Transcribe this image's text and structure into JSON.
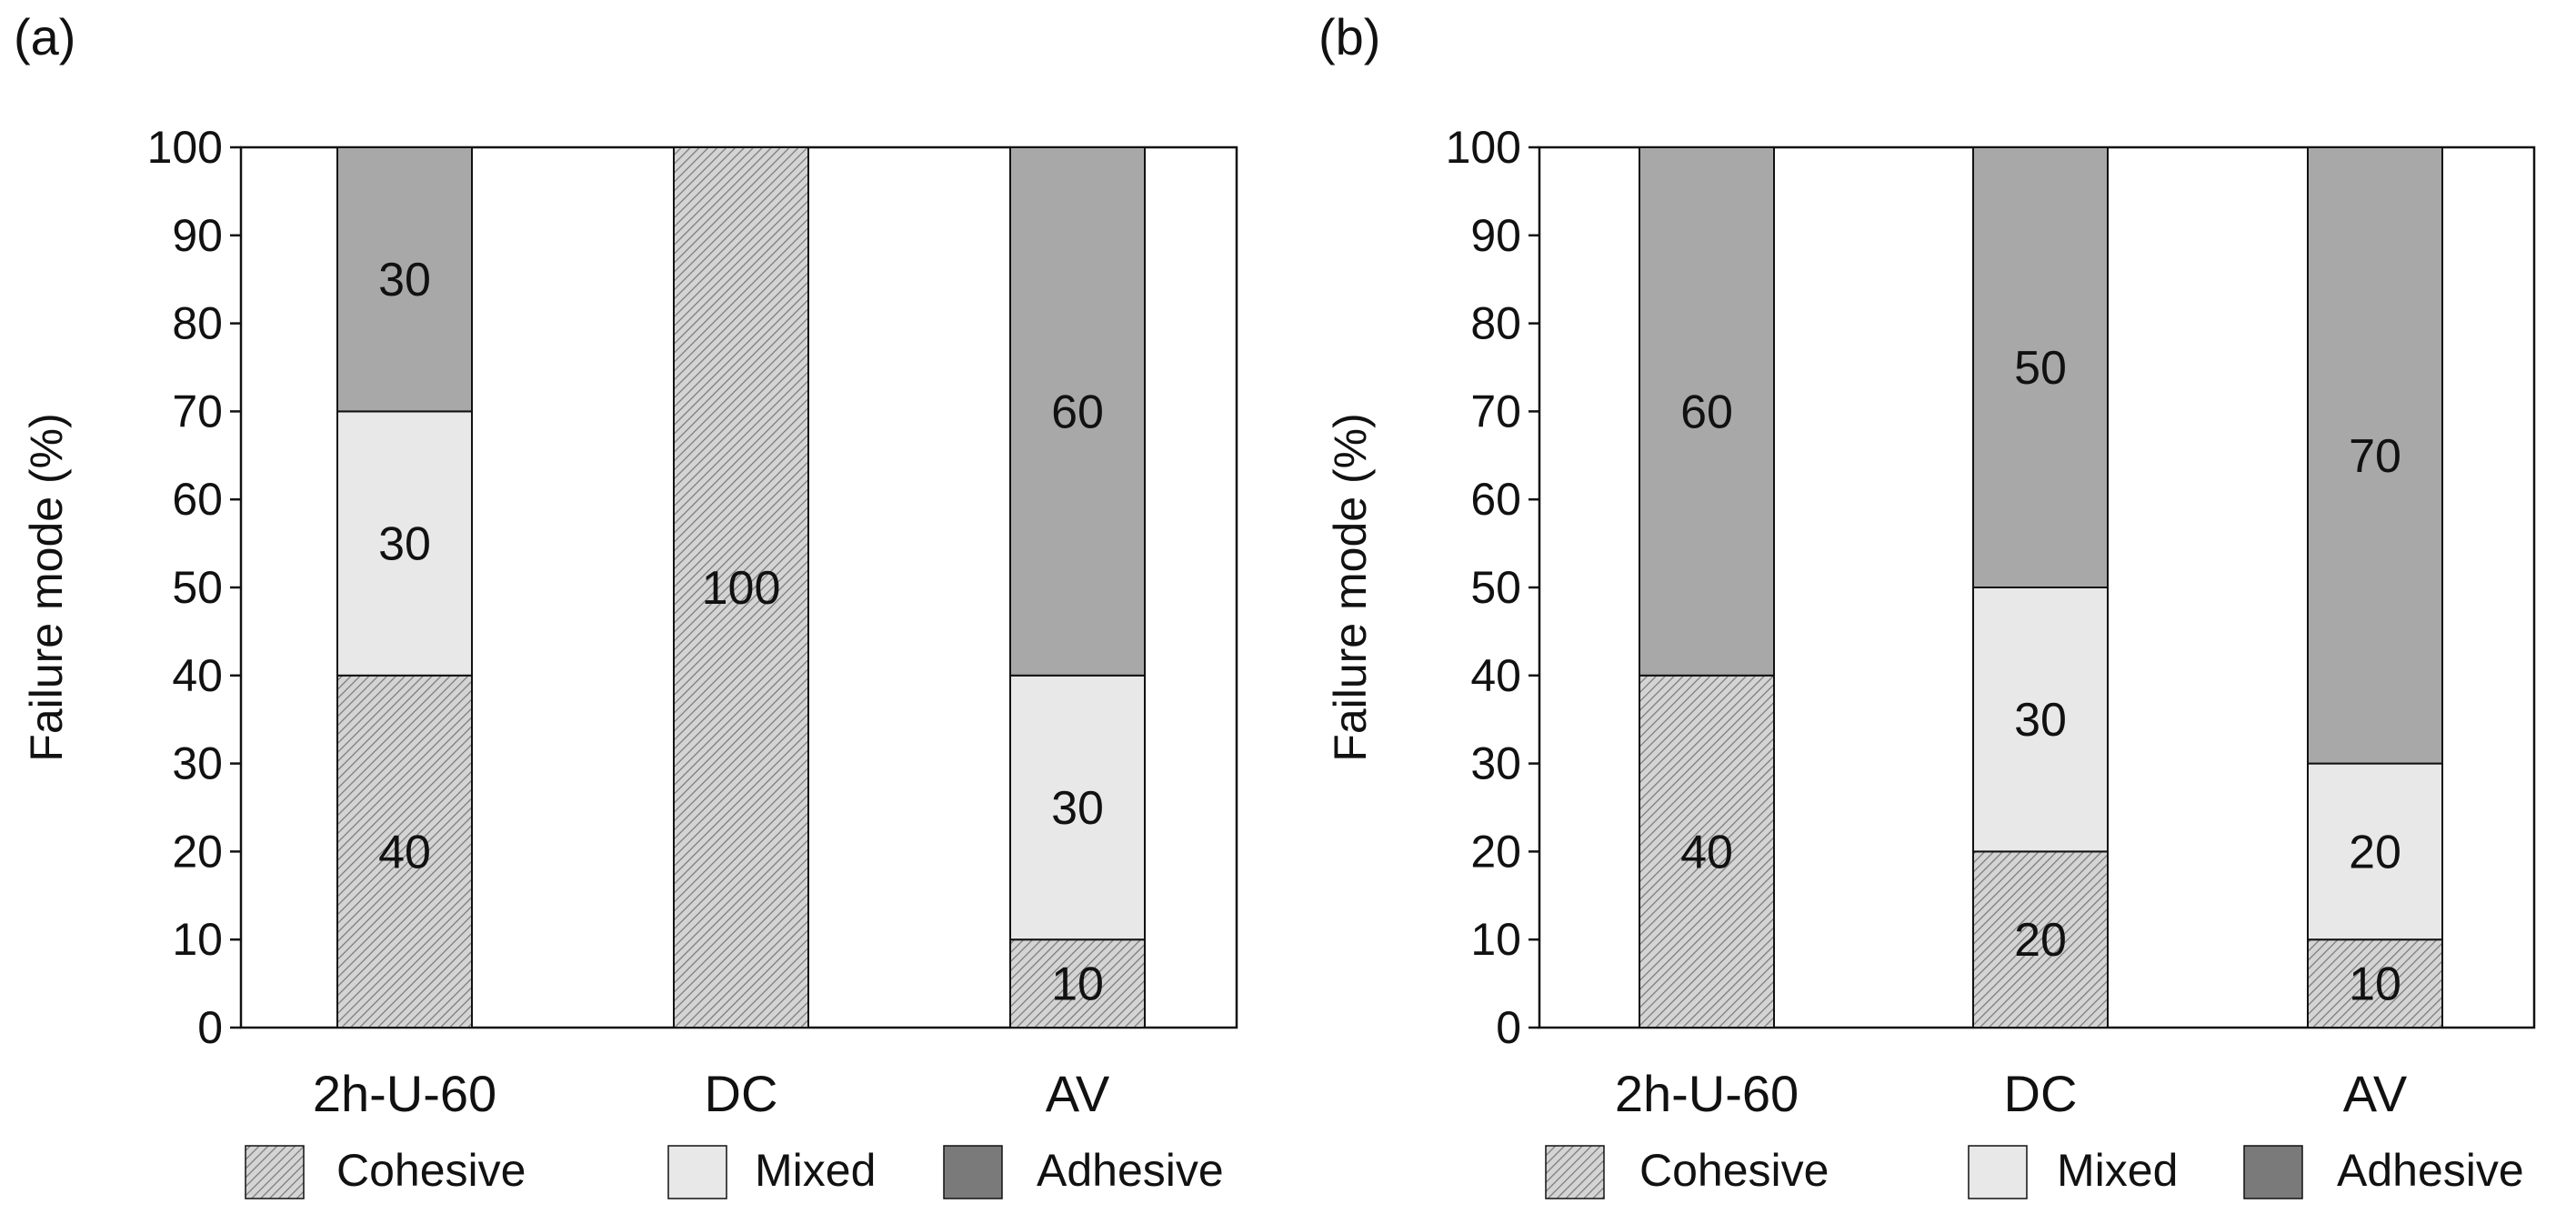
{
  "chart_data": [
    {
      "type": "bar",
      "stacked": true,
      "panel_label": "(a)",
      "categories": [
        "2h-U-60",
        "DC",
        "AV"
      ],
      "series": [
        {
          "name": "Cohesive",
          "values": [
            40,
            100,
            10
          ]
        },
        {
          "name": "Mixed",
          "values": [
            30,
            0,
            30
          ]
        },
        {
          "name": "Adhesive",
          "values": [
            30,
            0,
            60
          ]
        }
      ],
      "ylabel": "Failure mode (%)",
      "xlabel": "",
      "ylim": [
        0,
        100
      ],
      "yticks": [
        0,
        10,
        20,
        30,
        40,
        50,
        60,
        70,
        80,
        90,
        100
      ],
      "legend": [
        "Cohesive",
        "Mixed",
        "Adhesive"
      ],
      "legend_position": "bottom"
    },
    {
      "type": "bar",
      "stacked": true,
      "panel_label": "(b)",
      "categories": [
        "2h-U-60",
        "DC",
        "AV"
      ],
      "series": [
        {
          "name": "Cohesive",
          "values": [
            40,
            20,
            10
          ]
        },
        {
          "name": "Mixed",
          "values": [
            0,
            30,
            20
          ]
        },
        {
          "name": "Adhesive",
          "values": [
            60,
            50,
            70
          ]
        }
      ],
      "ylabel": "Failure mode (%)",
      "xlabel": "",
      "ylim": [
        0,
        100
      ],
      "yticks": [
        0,
        10,
        20,
        30,
        40,
        50,
        60,
        70,
        80,
        90,
        100
      ],
      "legend": [
        "Cohesive",
        "Mixed",
        "Adhesive"
      ],
      "legend_position": "bottom"
    }
  ],
  "colors": {
    "Cohesive": "#d2d2d2",
    "Mixed": "#e8e8e8",
    "Adhesive": "#a8a8a8",
    "AdhesiveLegend": "#7a7a7a",
    "hatch": "#808080",
    "axis": "#111111"
  }
}
